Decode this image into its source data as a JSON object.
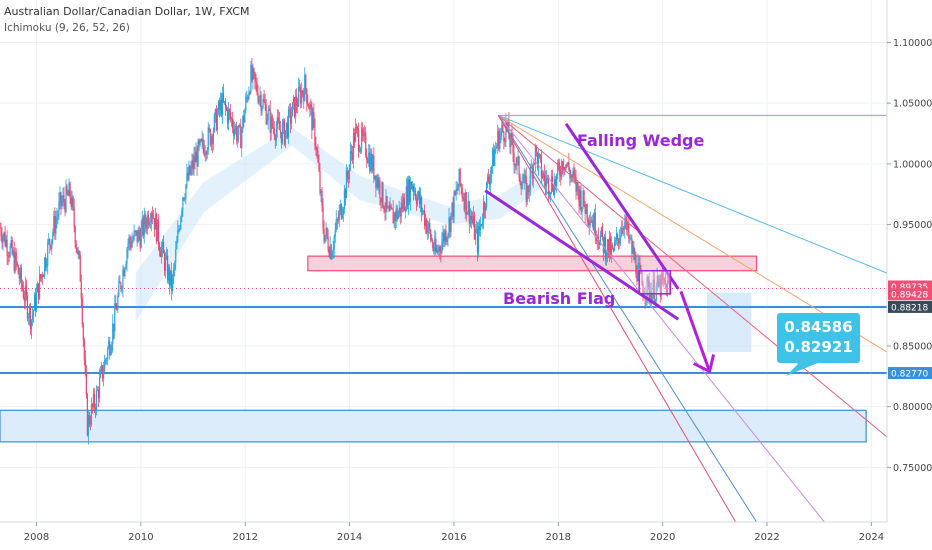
{
  "header": {
    "title": "Australian Dollar/Canadian Dollar, 1W, FXCM",
    "indicator": "Ichimoku (9, 26, 52, 26)"
  },
  "chart_data": {
    "type": "candlestick",
    "symbol": "Australian Dollar/Canadian Dollar",
    "interval": "1W",
    "source": "FXCM",
    "indicator": "Ichimoku (9, 26, 52, 26)",
    "y_ticks": [
      "1.10000",
      "1.05000",
      "1.00000",
      "0.95000",
      "0.85000",
      "0.80000",
      "0.75000"
    ],
    "y_tick_values": [
      1.1,
      1.05,
      1.0,
      0.95,
      0.85,
      0.8,
      0.75
    ],
    "x_ticks": [
      "2008",
      "2010",
      "2012",
      "2014",
      "2016",
      "2018",
      "2020",
      "2022",
      "2024"
    ],
    "x_tick_values": [
      2008,
      2010,
      2012,
      2014,
      2016,
      2018,
      2020,
      2022,
      2024
    ],
    "ylim": [
      0.705,
      1.135
    ],
    "xlim": [
      2007.3,
      2024.3
    ],
    "price_labels": [
      {
        "text": "0.89735",
        "value": 0.89735,
        "color": "#ef4f75"
      },
      {
        "text": "0.89428",
        "value": 0.89428,
        "color": "#ef4f75"
      },
      {
        "text": "0.88218",
        "value": 0.88218,
        "color": "#3a4a5a"
      },
      {
        "text": "0.82770",
        "value": 0.8277,
        "color": "#3a8fd8"
      }
    ],
    "annotations": {
      "falling_wedge": "Falling Wedge",
      "bearish_flag": "Bearish Flag",
      "targets": [
        "0.84586",
        "0.82921"
      ]
    },
    "zones": [
      {
        "kind": "resistance",
        "x": [
          2013.2,
          2021.8
        ],
        "y": [
          0.912,
          0.924
        ],
        "color": "#ef4f75"
      },
      {
        "kind": "support",
        "x": [
          2007.3,
          2023.9
        ],
        "y": [
          0.771,
          0.797
        ],
        "color": "#3a8fd8"
      }
    ],
    "levels": [
      {
        "value": 0.8821,
        "color": "#3a8fd8"
      },
      {
        "value": 0.8277,
        "color": "#3a8fd8"
      }
    ],
    "price_path": [
      [
        2007.3,
        0.948
      ],
      [
        2007.6,
        0.918
      ],
      [
        2007.9,
        0.872
      ],
      [
        2008.2,
        0.928
      ],
      [
        2008.45,
        0.966
      ],
      [
        2008.65,
        0.975
      ],
      [
        2008.85,
        0.905
      ],
      [
        2008.97,
        0.785
      ],
      [
        2009.15,
        0.808
      ],
      [
        2009.45,
        0.862
      ],
      [
        2009.75,
        0.935
      ],
      [
        2010.0,
        0.942
      ],
      [
        2010.2,
        0.965
      ],
      [
        2010.4,
        0.928
      ],
      [
        2010.6,
        0.898
      ],
      [
        2010.8,
        0.975
      ],
      [
        2011.05,
        1.005
      ],
      [
        2011.35,
        1.025
      ],
      [
        2011.55,
        1.05
      ],
      [
        2011.75,
        1.035
      ],
      [
        2011.9,
        1.02
      ],
      [
        2012.1,
        1.072
      ],
      [
        2012.3,
        1.055
      ],
      [
        2012.5,
        1.032
      ],
      [
        2012.75,
        1.025
      ],
      [
        2012.95,
        1.048
      ],
      [
        2013.15,
        1.065
      ],
      [
        2013.35,
        1.02
      ],
      [
        2013.5,
        0.945
      ],
      [
        2013.65,
        0.93
      ],
      [
        2013.9,
        0.975
      ],
      [
        2014.1,
        1.025
      ],
      [
        2014.3,
        1.015
      ],
      [
        2014.55,
        0.985
      ],
      [
        2014.75,
        0.955
      ],
      [
        2014.95,
        0.96
      ],
      [
        2015.2,
        0.985
      ],
      [
        2015.45,
        0.955
      ],
      [
        2015.65,
        0.925
      ],
      [
        2015.9,
        0.95
      ],
      [
        2016.1,
        0.985
      ],
      [
        2016.3,
        0.96
      ],
      [
        2016.45,
        0.935
      ],
      [
        2016.65,
        0.985
      ],
      [
        2016.85,
        1.022
      ],
      [
        2017.0,
        1.03
      ],
      [
        2017.2,
        1.0
      ],
      [
        2017.4,
        0.975
      ],
      [
        2017.55,
        1.01
      ],
      [
        2017.75,
        0.985
      ],
      [
        2017.95,
        0.985
      ],
      [
        2018.1,
        1.005
      ],
      [
        2018.25,
        0.99
      ],
      [
        2018.45,
        0.97
      ],
      [
        2018.65,
        0.955
      ],
      [
        2018.85,
        0.935
      ],
      [
        2019.05,
        0.925
      ],
      [
        2019.25,
        0.955
      ],
      [
        2019.4,
        0.93
      ],
      [
        2019.6,
        0.9
      ],
      [
        2019.8,
        0.895
      ],
      [
        2020.0,
        0.9
      ],
      [
        2020.15,
        0.897
      ]
    ],
    "ichimoku_cloud": [
      [
        2009.9,
        0.87,
        0.91
      ],
      [
        2011.2,
        0.96,
        0.985
      ],
      [
        2012.9,
        1.015,
        1.03
      ],
      [
        2014.2,
        0.97,
        0.99
      ],
      [
        2015.9,
        0.95,
        0.965
      ],
      [
        2016.9,
        0.955,
        0.975
      ],
      [
        2017.8,
        0.985,
        1.0
      ]
    ],
    "trendlines": [
      {
        "x": [
          2016.85,
          2024.3
        ],
        "y": [
          1.04,
          1.04
        ],
        "color": "#c084d8"
      },
      {
        "x": [
          2016.85,
          2024.3
        ],
        "y": [
          1.04,
          0.91
        ],
        "color": "#58b8ec"
      },
      {
        "x": [
          2016.85,
          2024.3
        ],
        "y": [
          1.04,
          0.845
        ],
        "color": "#f5a36b"
      },
      {
        "x": [
          2016.85,
          2024.3
        ],
        "y": [
          1.04,
          0.775
        ],
        "color": "#e8607f"
      },
      {
        "x": [
          2016.85,
          2023.1
        ],
        "y": [
          1.04,
          0.705
        ],
        "color": "#c58ee0"
      },
      {
        "x": [
          2016.85,
          2021.8
        ],
        "y": [
          1.04,
          0.705
        ],
        "color": "#4f8fd1"
      },
      {
        "x": [
          2016.85,
          2021.4
        ],
        "y": [
          1.04,
          0.705
        ],
        "color": "#e0507a"
      }
    ],
    "wedge": {
      "upper": {
        "x": [
          2018.15,
          2020.3
        ],
        "y": [
          1.033,
          0.897
        ]
      },
      "lower": {
        "x": [
          2016.6,
          2020.3
        ],
        "y": [
          0.978,
          0.872
        ]
      }
    },
    "flag_box": {
      "x": [
        2019.55,
        2020.15
      ],
      "y": [
        0.893,
        0.912
      ]
    },
    "target_zone": {
      "x": [
        2020.85,
        2021.7
      ],
      "y": [
        0.845,
        0.894
      ]
    },
    "projection": {
      "x": [
        2020.35,
        2020.9
      ],
      "y": [
        0.895,
        0.829
      ]
    }
  }
}
